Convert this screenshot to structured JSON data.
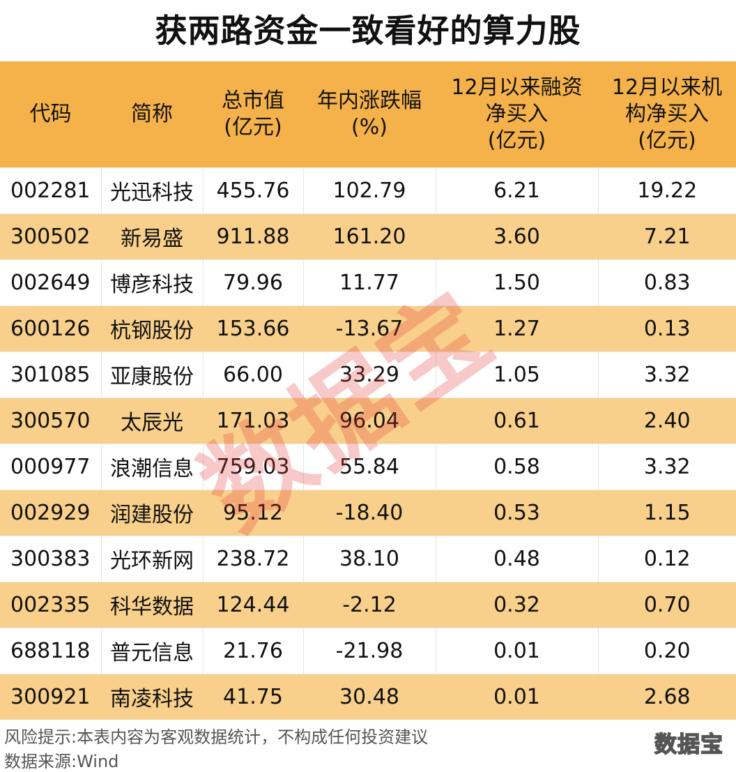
{
  "title": "获两路资金一致看好的算力股",
  "table": {
    "headers": [
      "代码",
      "简称",
      "总市值\n(亿元)",
      "年内涨跌幅\n(%)",
      "12月以来融资\n净买入\n(亿元)",
      "12月以来机\n构净买入\n(亿元)"
    ],
    "rows": [
      [
        "002281",
        "光迅科技",
        "455.76",
        "102.79",
        "6.21",
        "19.22"
      ],
      [
        "300502",
        "新易盛",
        "911.88",
        "161.20",
        "3.60",
        "7.21"
      ],
      [
        "002649",
        "博彦科技",
        "79.96",
        "11.77",
        "1.50",
        "0.83"
      ],
      [
        "600126",
        "杭钢股份",
        "153.66",
        "-13.67",
        "1.27",
        "0.13"
      ],
      [
        "301085",
        "亚康股份",
        "66.00",
        "33.29",
        "1.05",
        "3.32"
      ],
      [
        "300570",
        "太辰光",
        "171.03",
        "96.04",
        "0.61",
        "2.40"
      ],
      [
        "000977",
        "浪潮信息",
        "759.03",
        "55.84",
        "0.58",
        "3.32"
      ],
      [
        "002929",
        "润建股份",
        "95.12",
        "-18.40",
        "0.53",
        "1.15"
      ],
      [
        "300383",
        "光环新网",
        "238.72",
        "38.10",
        "0.48",
        "0.12"
      ],
      [
        "002335",
        "科华数据",
        "124.44",
        "-2.12",
        "0.32",
        "0.70"
      ],
      [
        "688118",
        "普元信息",
        "21.76",
        "-21.98",
        "0.01",
        "0.20"
      ],
      [
        "300921",
        "南凌科技",
        "41.75",
        "30.48",
        "0.01",
        "2.68"
      ]
    ]
  },
  "watermark": "数据宝",
  "footer": {
    "risk": "风险提示:本表内容为客观数据统计，不构成任何投资建议",
    "source": "数据来源:Wind",
    "logo": "数据宝"
  },
  "colors": {
    "header_bg": "#f6b24a",
    "stripe_bg": "#f8d08b",
    "watermark": "#e63c3c"
  }
}
